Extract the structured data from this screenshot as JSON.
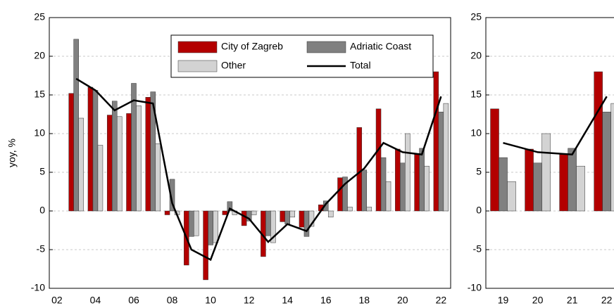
{
  "chart_data": [
    {
      "type": "bar",
      "ylabel": "yoy, %",
      "x": [
        2003,
        2004,
        2005,
        2006,
        2007,
        2008,
        2009,
        2010,
        2011,
        2012,
        2013,
        2014,
        2015,
        2016,
        2017,
        2018,
        2019,
        2020,
        2021,
        2022
      ],
      "series": [
        {
          "name": "City of Zagreb",
          "color": "#b30000",
          "values": [
            15.2,
            16.0,
            12.4,
            12.6,
            14.7,
            -0.5,
            -7.0,
            -8.9,
            -0.5,
            -1.9,
            -5.9,
            -1.4,
            -2.1,
            0.8,
            4.3,
            10.8,
            13.2,
            8.0,
            7.3,
            18.0
          ]
        },
        {
          "name": "Adriatic Coast",
          "color": "#808080",
          "values": [
            22.2,
            15.6,
            14.2,
            16.5,
            15.4,
            4.1,
            -3.3,
            -4.4,
            1.2,
            -1.3,
            -3.2,
            -1.7,
            -3.3,
            1.3,
            4.4,
            5.3,
            6.9,
            6.2,
            8.1,
            12.8
          ]
        },
        {
          "name": "Other",
          "color": "#d3d3d3",
          "values": [
            12.0,
            8.5,
            12.2,
            13.6,
            8.7,
            -0.5,
            -3.2,
            -4.1,
            -0.5,
            -0.5,
            -4.1,
            -0.8,
            -2.0,
            -0.8,
            0.5,
            0.5,
            3.8,
            10.0,
            5.8,
            13.9
          ]
        },
        {
          "name": "Total",
          "color": "#000000",
          "type": "line",
          "values": [
            17.1,
            15.6,
            13.0,
            14.3,
            13.9,
            1.0,
            -5.0,
            -6.3,
            0.3,
            -1.0,
            -4.0,
            -1.7,
            -2.6,
            0.9,
            3.5,
            5.5,
            8.8,
            7.6,
            7.3,
            14.8
          ]
        }
      ],
      "xlim": [
        2001.6,
        2022.5
      ],
      "xticks": [
        {
          "value": 2002,
          "label": "02"
        },
        {
          "value": 2004,
          "label": "04"
        },
        {
          "value": 2006,
          "label": "06"
        },
        {
          "value": 2008,
          "label": "08"
        },
        {
          "value": 2010,
          "label": "10"
        },
        {
          "value": 2012,
          "label": "12"
        },
        {
          "value": 2014,
          "label": "14"
        },
        {
          "value": 2016,
          "label": "16"
        },
        {
          "value": 2018,
          "label": "18"
        },
        {
          "value": 2020,
          "label": "20"
        },
        {
          "value": 2022,
          "label": "22"
        }
      ],
      "ylim": [
        -10,
        25
      ],
      "yticks": [
        -10,
        -5,
        0,
        5,
        10,
        15,
        20,
        25
      ],
      "grid": true,
      "legend": "upper center"
    },
    {
      "type": "bar",
      "x": [
        2019,
        2020,
        2021,
        2022
      ],
      "series": [
        {
          "color": "#b30000",
          "values": [
            13.2,
            8.0,
            7.3,
            18.0
          ]
        },
        {
          "color": "#808080",
          "values": [
            6.9,
            6.2,
            8.1,
            12.8
          ]
        },
        {
          "color": "#d3d3d3",
          "values": [
            3.8,
            10.0,
            5.8,
            13.9
          ]
        },
        {
          "color": "#000000",
          "type": "line",
          "values": [
            8.8,
            7.6,
            7.3,
            14.8
          ]
        }
      ],
      "xlim": [
        2018.5,
        2022.7
      ],
      "xticks": [
        {
          "value": 2019,
          "label": "19"
        },
        {
          "value": 2020,
          "label": "20"
        },
        {
          "value": 2021,
          "label": "21"
        },
        {
          "value": 2022,
          "label": "22"
        }
      ],
      "ylim": [
        -10,
        25
      ],
      "yticks": [
        -10,
        -5,
        0,
        5,
        10,
        15,
        20,
        25
      ],
      "grid": true
    }
  ]
}
